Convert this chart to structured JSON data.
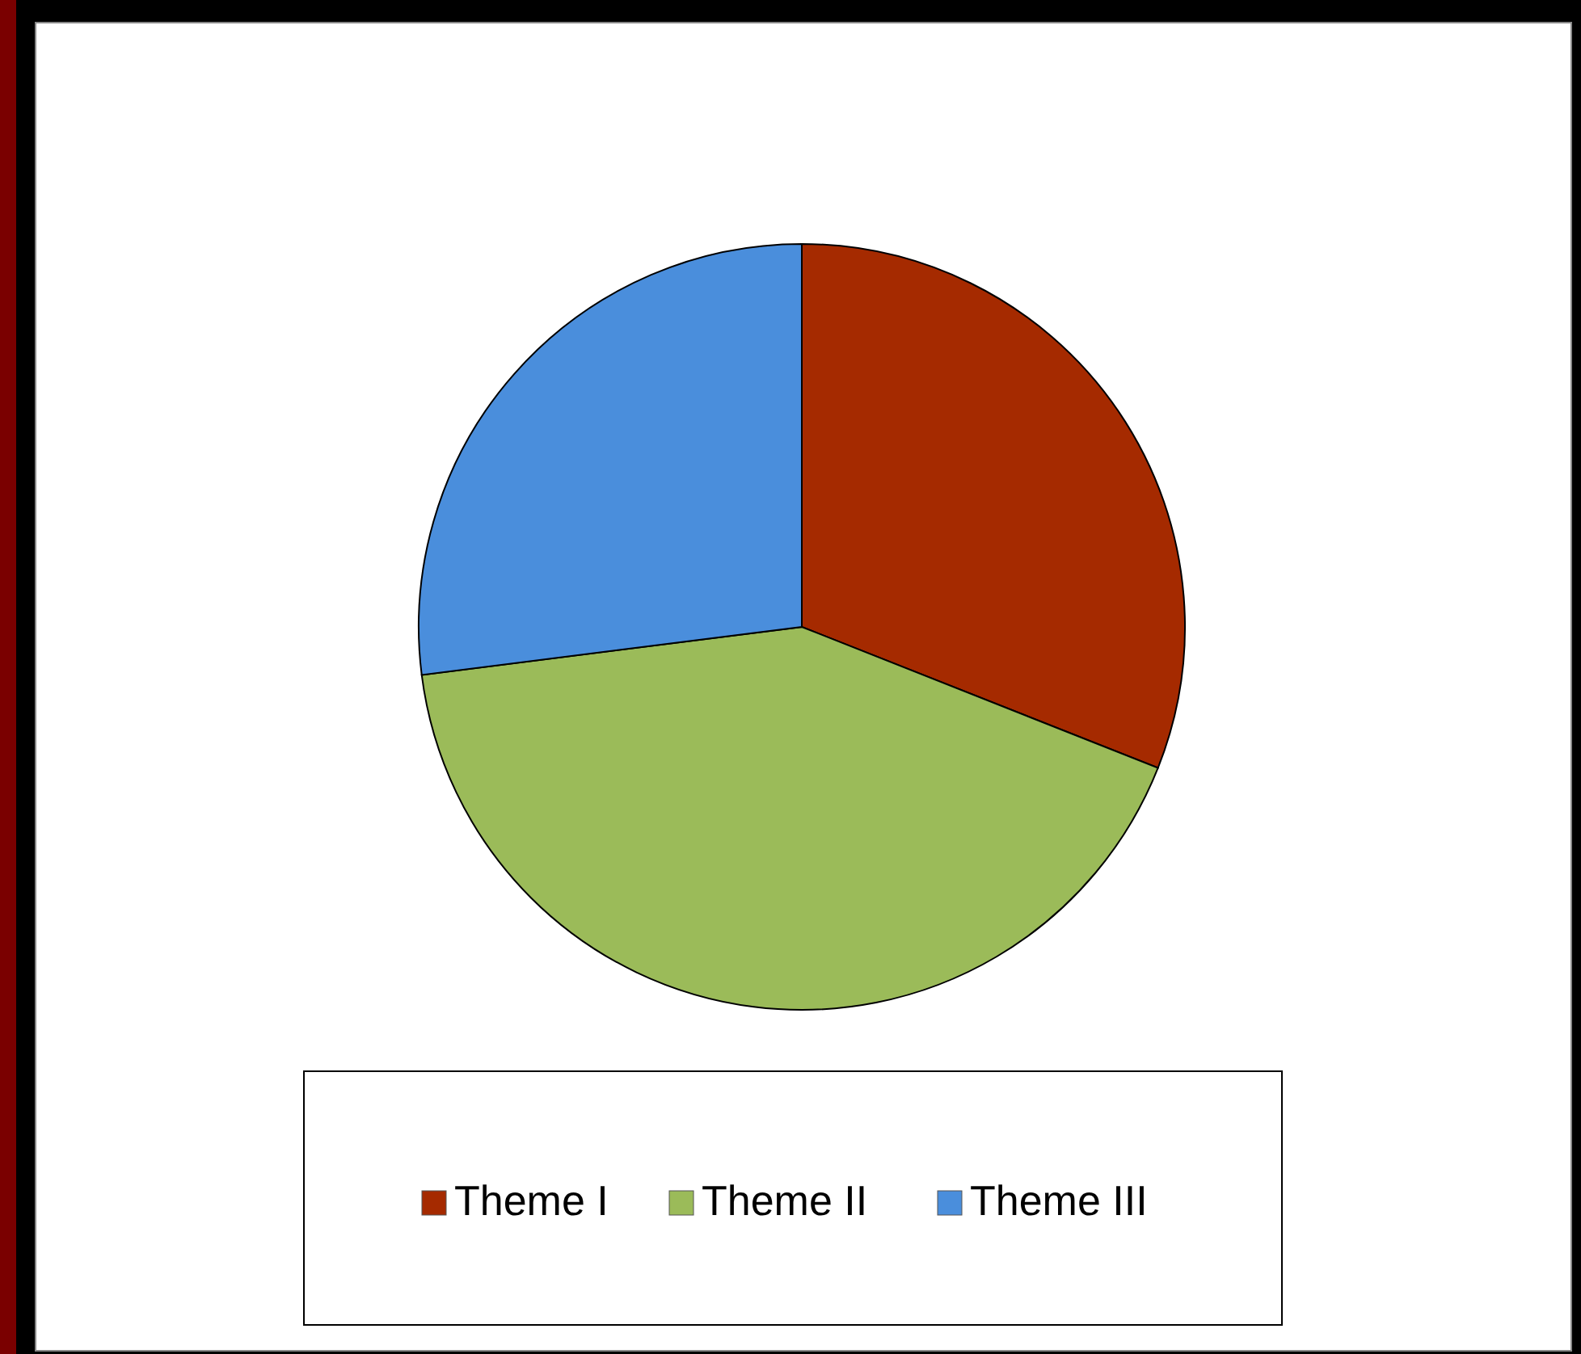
{
  "chart_data": {
    "type": "pie",
    "categories": [
      "Theme I",
      "Theme II",
      "Theme III"
    ],
    "values": [
      31,
      42,
      27
    ],
    "colors": [
      "#a52a00",
      "#9bbb59",
      "#4a8edc"
    ],
    "legend": "bottom"
  }
}
